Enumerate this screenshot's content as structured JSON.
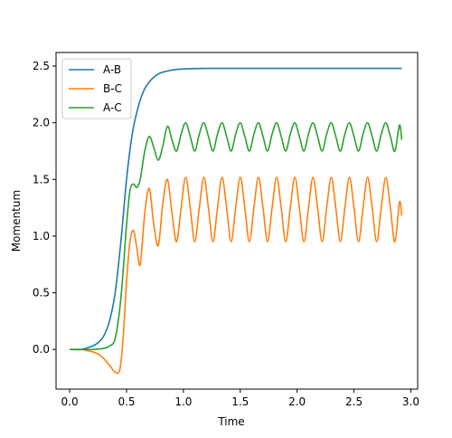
{
  "chart_data": {
    "type": "line",
    "title": "",
    "xlabel": "Time",
    "ylabel": "Momentum",
    "xlim": [
      -0.12,
      3.06
    ],
    "ylim": [
      -0.35,
      2.62
    ],
    "xticks": [
      0.0,
      0.5,
      1.0,
      1.5,
      2.0,
      2.5,
      3.0
    ],
    "xtick_labels": [
      "0.0",
      "0.5",
      "1.0",
      "1.5",
      "2.0",
      "2.5",
      "3.0"
    ],
    "yticks": [
      0.0,
      0.5,
      1.0,
      1.5,
      2.0,
      2.5
    ],
    "ytick_labels": [
      "0.0",
      "0.5",
      "1.0",
      "1.5",
      "2.0",
      "2.5"
    ],
    "grid": false,
    "legend_position": "top-left",
    "series": [
      {
        "name": "A-B",
        "color": "#1f77b4",
        "x": [
          0.0,
          0.1,
          0.2,
          0.25,
          0.3,
          0.35,
          0.4,
          0.45,
          0.5,
          0.55,
          0.6,
          0.65,
          0.7,
          0.75,
          0.8,
          0.9,
          1.0,
          1.2,
          1.5,
          2.0,
          2.5,
          2.92
        ],
        "y": [
          0.0,
          0.0,
          0.03,
          0.06,
          0.12,
          0.25,
          0.5,
          0.95,
          1.5,
          1.9,
          2.13,
          2.28,
          2.36,
          2.41,
          2.44,
          2.465,
          2.475,
          2.48,
          2.48,
          2.48,
          2.48,
          2.48
        ]
      },
      {
        "name": "B-C",
        "color": "#ff7f0e",
        "x": [
          0.0,
          0.1,
          0.2,
          0.25,
          0.3,
          0.35,
          0.4,
          0.44,
          0.47,
          0.5,
          0.53,
          0.56,
          0.59,
          0.62,
          0.66,
          0.7,
          0.74,
          0.78,
          0.82,
          0.86,
          0.9,
          0.94,
          0.98,
          1.02,
          1.06,
          1.1,
          1.14,
          1.18,
          1.22,
          1.26,
          1.3,
          1.34,
          1.38,
          1.42,
          1.46,
          1.5,
          1.54,
          1.58,
          1.62,
          1.66,
          1.7,
          1.74,
          1.78,
          1.82,
          1.86,
          1.9,
          1.94,
          1.98,
          2.02,
          2.06,
          2.1,
          2.14,
          2.18,
          2.22,
          2.26,
          2.3,
          2.34,
          2.38,
          2.42,
          2.46,
          2.5,
          2.54,
          2.58,
          2.62,
          2.66,
          2.7,
          2.74,
          2.78,
          2.82,
          2.86,
          2.9,
          2.92
        ],
        "y": [
          0.0,
          0.0,
          -0.02,
          -0.04,
          -0.08,
          -0.14,
          -0.2,
          -0.18,
          0.1,
          0.6,
          0.95,
          1.05,
          0.9,
          0.75,
          1.2,
          1.42,
          1.1,
          0.92,
          1.3,
          1.5,
          1.2,
          0.95,
          1.25,
          1.52,
          1.25,
          0.95,
          1.25,
          1.52,
          1.25,
          0.95,
          1.25,
          1.52,
          1.25,
          0.95,
          1.25,
          1.52,
          1.25,
          0.95,
          1.25,
          1.52,
          1.25,
          0.95,
          1.25,
          1.52,
          1.25,
          0.95,
          1.25,
          1.52,
          1.25,
          0.95,
          1.25,
          1.52,
          1.25,
          0.95,
          1.25,
          1.52,
          1.25,
          0.95,
          1.25,
          1.52,
          1.25,
          0.95,
          1.25,
          1.52,
          1.25,
          0.95,
          1.25,
          1.52,
          1.25,
          0.95,
          1.3,
          1.18
        ]
      },
      {
        "name": "A-C",
        "color": "#2ca02c",
        "x": [
          0.0,
          0.1,
          0.2,
          0.3,
          0.35,
          0.4,
          0.45,
          0.5,
          0.53,
          0.56,
          0.59,
          0.62,
          0.66,
          0.7,
          0.74,
          0.78,
          0.82,
          0.86,
          0.9,
          0.94,
          0.98,
          1.02,
          1.06,
          1.1,
          1.14,
          1.18,
          1.22,
          1.26,
          1.3,
          1.34,
          1.38,
          1.42,
          1.46,
          1.5,
          1.54,
          1.58,
          1.62,
          1.66,
          1.7,
          1.74,
          1.78,
          1.82,
          1.86,
          1.9,
          1.94,
          1.98,
          2.02,
          2.06,
          2.1,
          2.14,
          2.18,
          2.22,
          2.26,
          2.3,
          2.34,
          2.38,
          2.42,
          2.46,
          2.5,
          2.54,
          2.58,
          2.62,
          2.66,
          2.7,
          2.74,
          2.78,
          2.82,
          2.86,
          2.9,
          2.92
        ],
        "y": [
          0.0,
          0.0,
          0.0,
          0.01,
          0.03,
          0.1,
          0.45,
          1.1,
          1.4,
          1.46,
          1.43,
          1.5,
          1.75,
          1.88,
          1.78,
          1.67,
          1.8,
          1.97,
          1.85,
          1.75,
          1.9,
          2.0,
          1.88,
          1.75,
          1.9,
          2.0,
          1.88,
          1.75,
          1.9,
          2.0,
          1.88,
          1.75,
          1.9,
          2.0,
          1.88,
          1.75,
          1.9,
          2.0,
          1.88,
          1.75,
          1.9,
          2.0,
          1.88,
          1.75,
          1.9,
          2.0,
          1.88,
          1.75,
          1.9,
          2.0,
          1.88,
          1.75,
          1.9,
          2.0,
          1.88,
          1.75,
          1.9,
          2.0,
          1.88,
          1.75,
          1.9,
          2.0,
          1.88,
          1.75,
          1.9,
          2.0,
          1.88,
          1.75,
          1.98,
          1.85
        ]
      }
    ]
  }
}
